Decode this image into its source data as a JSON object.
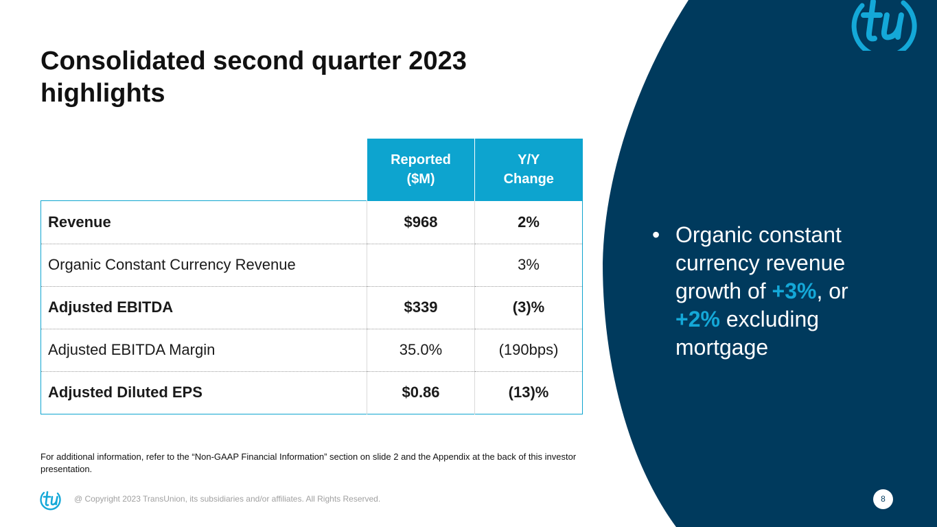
{
  "slide": {
    "title_lines": [
      "Consolidated second quarter 2023",
      "highlights"
    ],
    "colors": {
      "navy": "#003a5d",
      "accent": "#0da4cf",
      "highlight": "#14a8d8"
    }
  },
  "table": {
    "headers": [
      {
        "line1": "Reported",
        "line2": "($M)"
      },
      {
        "line1": "Y/Y",
        "line2": "Change"
      }
    ],
    "rows": [
      {
        "label": "Revenue",
        "reported": "$968",
        "change": "2%"
      },
      {
        "label": "Organic Constant Currency Revenue",
        "reported": "",
        "change": "3%"
      },
      {
        "label": "Adjusted EBITDA",
        "reported": "$339",
        "change": "(3)%"
      },
      {
        "label": "Adjusted EBITDA Margin",
        "reported": "35.0%",
        "change": "(190bps)"
      },
      {
        "label": "Adjusted Diluted EPS",
        "reported": "$0.86",
        "change": "(13)%"
      }
    ]
  },
  "bullet": {
    "dot": "•",
    "part1": "Organic constant currency revenue growth of ",
    "hl1": "+3%",
    "part2": ", or ",
    "hl2": "+2%",
    "part3": " excluding mortgage"
  },
  "footer": {
    "note": "For additional information, refer to the “Non-GAAP Financial Information” section on slide 2 and the Appendix at the back of this investor presentation.",
    "copyright": "@ Copyright 2023 TransUnion, its subsidiaries and/or affiliates.  All Rights Reserved.",
    "page_number": "8"
  },
  "logo": {
    "icon": "transunion-tu-logo",
    "lettering": "tu"
  }
}
